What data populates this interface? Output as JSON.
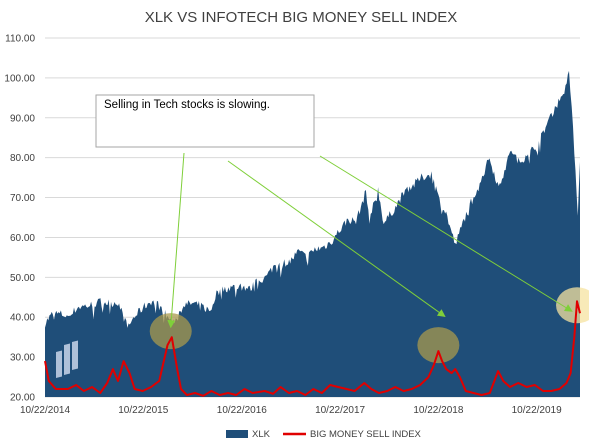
{
  "chart_data": {
    "type": "area",
    "title": "XLK VS INFOTECH BIG MONEY SELL INDEX",
    "xlabel": "",
    "ylabel": "",
    "ylim": [
      20,
      110
    ],
    "y_ticks": [
      "110.00",
      "100.00",
      "90.00",
      "80.00",
      "70.00",
      "60.00",
      "50.00",
      "40.00",
      "30.00",
      "20.00"
    ],
    "x_ticks": [
      "10/22/2014",
      "10/22/2015",
      "10/22/2016",
      "10/22/2017",
      "10/22/2018",
      "10/22/2019"
    ],
    "x_range": [
      "2014-10-22",
      "2020-03-31"
    ],
    "grid": "horizontal",
    "legend_position": "bottom",
    "series": [
      {
        "name": "XLK",
        "type": "area",
        "color": "#1f4e79",
        "points": [
          [
            "2014-10-22",
            38.5
          ],
          [
            "2014-11-20",
            41.0
          ],
          [
            "2014-12-20",
            40.8
          ],
          [
            "2015-01-20",
            40.2
          ],
          [
            "2015-02-20",
            42.5
          ],
          [
            "2015-03-20",
            42.8
          ],
          [
            "2015-04-20",
            43.2
          ],
          [
            "2015-05-20",
            44.0
          ],
          [
            "2015-06-20",
            43.5
          ],
          [
            "2015-07-20",
            43.8
          ],
          [
            "2015-08-24",
            37.5
          ],
          [
            "2015-09-20",
            40.2
          ],
          [
            "2015-10-22",
            42.5
          ],
          [
            "2015-11-20",
            44.0
          ],
          [
            "2015-12-20",
            43.0
          ],
          [
            "2016-01-20",
            40.0
          ],
          [
            "2016-02-11",
            38.8
          ],
          [
            "2016-03-20",
            43.0
          ],
          [
            "2016-04-20",
            43.5
          ],
          [
            "2016-05-20",
            43.0
          ],
          [
            "2016-06-27",
            41.5
          ],
          [
            "2016-07-20",
            46.0
          ],
          [
            "2016-08-20",
            47.2
          ],
          [
            "2016-09-20",
            47.5
          ],
          [
            "2016-10-22",
            47.8
          ],
          [
            "2016-11-20",
            47.0
          ],
          [
            "2016-12-20",
            49.0
          ],
          [
            "2017-01-20",
            50.0
          ],
          [
            "2017-02-20",
            53.0
          ],
          [
            "2017-03-20",
            53.5
          ],
          [
            "2017-04-20",
            54.0
          ],
          [
            "2017-05-20",
            56.5
          ],
          [
            "2017-06-20",
            55.0
          ],
          [
            "2017-07-20",
            57.0
          ],
          [
            "2017-08-20",
            57.5
          ],
          [
            "2017-09-20",
            59.0
          ],
          [
            "2017-10-22",
            62.0
          ],
          [
            "2017-11-20",
            64.5
          ],
          [
            "2017-12-20",
            64.0
          ],
          [
            "2018-01-26",
            71.5
          ],
          [
            "2018-02-08",
            64.5
          ],
          [
            "2018-03-12",
            72.0
          ],
          [
            "2018-04-02",
            63.5
          ],
          [
            "2018-05-20",
            68.0
          ],
          [
            "2018-06-20",
            72.0
          ],
          [
            "2018-07-20",
            73.0
          ],
          [
            "2018-08-20",
            75.0
          ],
          [
            "2018-10-01",
            76.0
          ],
          [
            "2018-10-22",
            70.0
          ],
          [
            "2018-11-20",
            66.0
          ],
          [
            "2018-12-24",
            58.0
          ],
          [
            "2019-01-20",
            63.5
          ],
          [
            "2019-02-20",
            69.0
          ],
          [
            "2019-03-20",
            73.0
          ],
          [
            "2019-04-30",
            80.0
          ],
          [
            "2019-06-03",
            72.5
          ],
          [
            "2019-07-20",
            82.0
          ],
          [
            "2019-08-20",
            78.5
          ],
          [
            "2019-09-20",
            81.5
          ],
          [
            "2019-10-22",
            82.5
          ],
          [
            "2019-11-20",
            87.0
          ],
          [
            "2019-12-20",
            91.5
          ],
          [
            "2020-01-20",
            95.0
          ],
          [
            "2020-02-19",
            101.5
          ],
          [
            "2020-03-10",
            82.0
          ],
          [
            "2020-03-23",
            66.0
          ],
          [
            "2020-03-31",
            79.0
          ]
        ]
      },
      {
        "name": "BIG MONEY SELL INDEX",
        "type": "line",
        "color": "#e00000",
        "points": [
          [
            "2014-10-22",
            29.0
          ],
          [
            "2014-11-05",
            24.0
          ],
          [
            "2014-12-01",
            22.0
          ],
          [
            "2015-01-15",
            22.0
          ],
          [
            "2015-02-15",
            23.0
          ],
          [
            "2015-03-15",
            21.5
          ],
          [
            "2015-04-15",
            22.5
          ],
          [
            "2015-05-15",
            21.0
          ],
          [
            "2015-06-10",
            23.5
          ],
          [
            "2015-07-01",
            27.0
          ],
          [
            "2015-07-20",
            24.0
          ],
          [
            "2015-08-10",
            29.0
          ],
          [
            "2015-09-01",
            26.0
          ],
          [
            "2015-09-20",
            22.0
          ],
          [
            "2015-10-20",
            21.5
          ],
          [
            "2015-11-20",
            22.5
          ],
          [
            "2015-12-20",
            24.0
          ],
          [
            "2016-01-20",
            33.0
          ],
          [
            "2016-02-05",
            35.0
          ],
          [
            "2016-02-25",
            27.0
          ],
          [
            "2016-03-10",
            22.0
          ],
          [
            "2016-04-01",
            20.5
          ],
          [
            "2016-05-01",
            21.0
          ],
          [
            "2016-06-01",
            20.3
          ],
          [
            "2016-07-01",
            21.5
          ],
          [
            "2016-08-01",
            20.5
          ],
          [
            "2016-09-01",
            21.0
          ],
          [
            "2016-10-01",
            20.5
          ],
          [
            "2016-11-01",
            22.0
          ],
          [
            "2016-12-01",
            21.0
          ],
          [
            "2017-01-15",
            21.5
          ],
          [
            "2017-02-15",
            20.8
          ],
          [
            "2017-03-15",
            22.5
          ],
          [
            "2017-04-15",
            21.0
          ],
          [
            "2017-05-15",
            21.5
          ],
          [
            "2017-06-15",
            20.5
          ],
          [
            "2017-07-15",
            22.0
          ],
          [
            "2017-08-15",
            21.0
          ],
          [
            "2017-09-15",
            23.0
          ],
          [
            "2017-10-15",
            22.5
          ],
          [
            "2017-11-15",
            22.0
          ],
          [
            "2017-12-15",
            21.5
          ],
          [
            "2018-01-20",
            23.5
          ],
          [
            "2018-02-15",
            22.0
          ],
          [
            "2018-03-15",
            21.0
          ],
          [
            "2018-04-15",
            21.5
          ],
          [
            "2018-05-15",
            22.5
          ],
          [
            "2018-06-15",
            21.5
          ],
          [
            "2018-07-15",
            22.0
          ],
          [
            "2018-08-15",
            23.0
          ],
          [
            "2018-09-15",
            25.0
          ],
          [
            "2018-10-05",
            28.0
          ],
          [
            "2018-10-22",
            31.5
          ],
          [
            "2018-11-05",
            29.0
          ],
          [
            "2018-11-20",
            27.0
          ],
          [
            "2018-12-10",
            26.0
          ],
          [
            "2018-12-24",
            27.0
          ],
          [
            "2019-01-10",
            25.0
          ],
          [
            "2019-02-01",
            21.5
          ],
          [
            "2019-03-01",
            21.0
          ],
          [
            "2019-04-01",
            20.5
          ],
          [
            "2019-05-01",
            21.0
          ],
          [
            "2019-06-01",
            26.5
          ],
          [
            "2019-06-20",
            24.0
          ],
          [
            "2019-07-15",
            22.5
          ],
          [
            "2019-08-15",
            23.5
          ],
          [
            "2019-09-15",
            22.5
          ],
          [
            "2019-10-15",
            23.0
          ],
          [
            "2019-11-15",
            21.5
          ],
          [
            "2019-12-15",
            21.5
          ],
          [
            "2020-01-15",
            22.0
          ],
          [
            "2020-02-10",
            23.5
          ],
          [
            "2020-02-25",
            26.0
          ],
          [
            "2020-03-10",
            35.0
          ],
          [
            "2020-03-20",
            44.0
          ],
          [
            "2020-03-31",
            41.0
          ]
        ]
      }
    ],
    "annotations": [
      {
        "text": "Selling in Tech stocks is slowing.",
        "arrows_to": [
          [
            "2016-02-01",
            37.5
          ],
          [
            "2018-11-15",
            40.2
          ],
          [
            "2020-03-01",
            41.5
          ]
        ]
      }
    ],
    "highlight_circles": [
      {
        "date": "2016-02-01",
        "value": 36.5,
        "color": "#a89a4e"
      },
      {
        "date": "2018-10-22",
        "value": 33.0,
        "color": "#a89a4e"
      },
      {
        "date": "2020-03-20",
        "value": 43.0,
        "color": "#f5e3a0"
      }
    ]
  }
}
